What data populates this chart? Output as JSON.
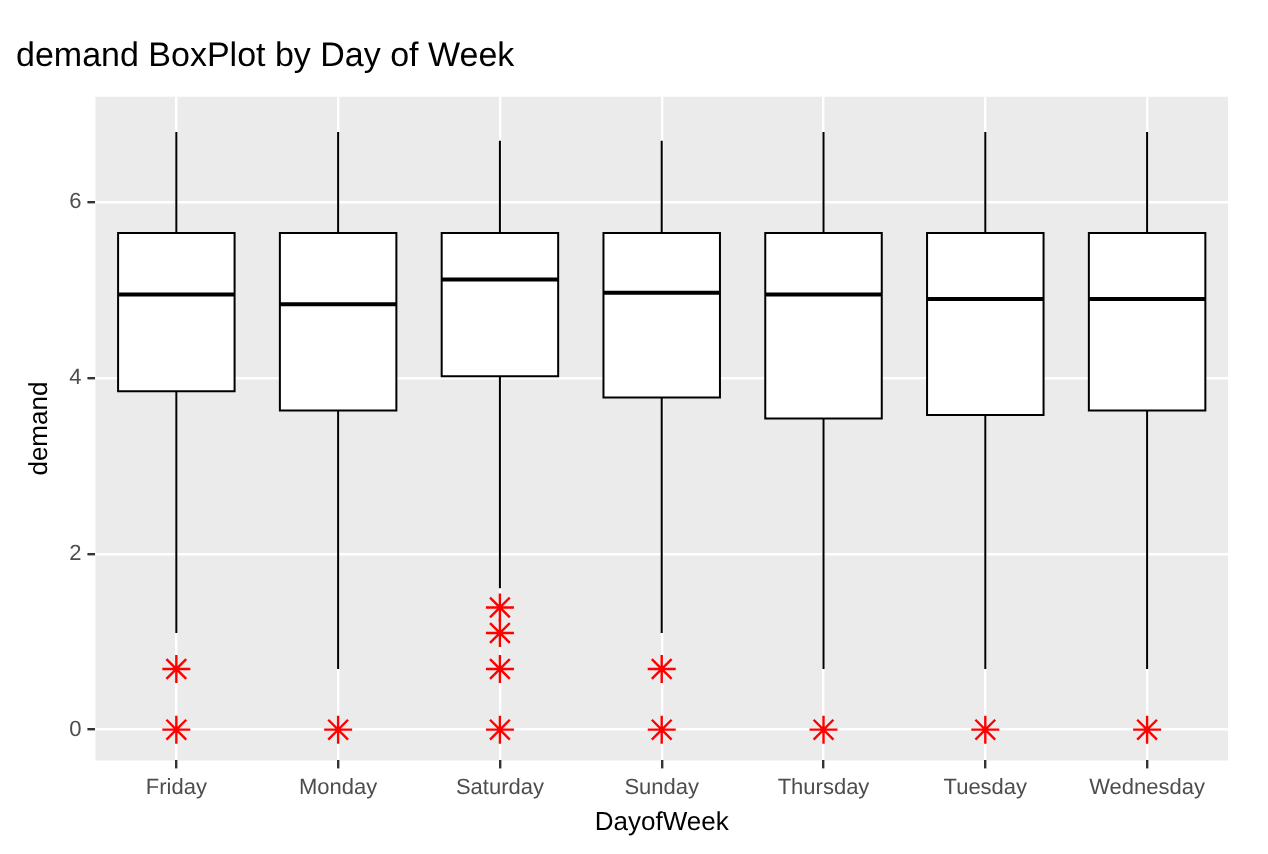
{
  "chart_data": {
    "type": "box",
    "title": "demand BoxPlot by Day of Week",
    "xlabel": "DayofWeek",
    "ylabel": "demand",
    "categories": [
      "Friday",
      "Monday",
      "Saturday",
      "Sunday",
      "Thursday",
      "Tuesday",
      "Wednesday"
    ],
    "series": [
      {
        "color": "#ffffff",
        "boxes": [
          {
            "low": 1.1,
            "q1": 3.85,
            "median": 4.95,
            "q3": 5.65,
            "high": 6.8,
            "outliers": [
              0.69,
              0
            ]
          },
          {
            "low": 0.69,
            "q1": 3.63,
            "median": 4.84,
            "q3": 5.65,
            "high": 6.8,
            "outliers": [
              0
            ]
          },
          {
            "low": 1.61,
            "q1": 4.02,
            "median": 5.12,
            "q3": 5.65,
            "high": 6.7,
            "outliers": [
              1.39,
              1.1,
              0.69,
              0
            ]
          },
          {
            "low": 1.1,
            "q1": 3.78,
            "median": 4.97,
            "q3": 5.65,
            "high": 6.7,
            "outliers": [
              0.69,
              0
            ]
          },
          {
            "low": 0.69,
            "q1": 3.54,
            "median": 4.95,
            "q3": 5.65,
            "high": 6.8,
            "outliers": [
              0
            ]
          },
          {
            "low": 0.69,
            "q1": 3.58,
            "median": 4.9,
            "q3": 5.65,
            "high": 6.8,
            "outliers": [
              0
            ]
          },
          {
            "low": 0.69,
            "q1": 3.63,
            "median": 4.9,
            "q3": 5.65,
            "high": 6.8,
            "outliers": [
              0
            ]
          }
        ]
      }
    ],
    "ylim": [
      -0.35,
      7.2
    ],
    "yticks": [
      0,
      2,
      4,
      6
    ],
    "grid": true,
    "marker": "star",
    "legend": false
  }
}
